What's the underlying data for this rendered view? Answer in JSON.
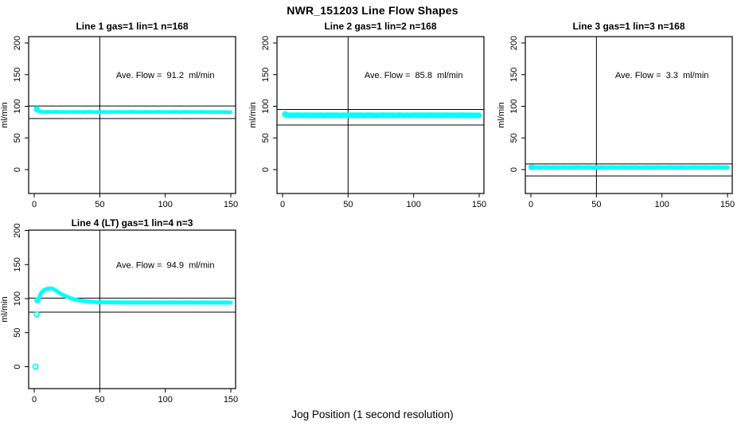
{
  "title": "NWR_151203  Line Flow Shapes",
  "xlabel": "Jog Position (1 second resolution)",
  "ylabel": "ml/min",
  "colors": {
    "points": "#00FFFF",
    "axis": "#000000",
    "background": "#FFFFFF"
  },
  "chart_data": [
    {
      "type": "scatter",
      "title": "Line 1 gas=1 lin=1 n=168",
      "line": 1,
      "gas": 1,
      "lin": 1,
      "n": 168,
      "annotation": "Ave. Flow =  91.2  ml/min",
      "ave_flow_ml_min": 91.2,
      "ylabel": "ml/min",
      "x_ticks": [
        0,
        50,
        100,
        150
      ],
      "y_ticks": [
        0,
        50,
        100,
        150,
        200
      ],
      "xlim": [
        -4,
        154
      ],
      "ylim": [
        -38,
        210
      ],
      "grid": false,
      "vline_x": 50,
      "hlines": [
        100.4,
        80.7
      ],
      "ring_markers": [
        [
          2,
          95.5
        ]
      ],
      "points": [
        [
          2,
          95.5
        ],
        [
          3,
          92.2
        ],
        [
          5,
          91.4
        ],
        [
          8,
          90.9
        ],
        [
          11,
          91.3
        ],
        [
          14,
          91.0
        ],
        [
          17,
          91.4
        ],
        [
          20,
          90.8
        ],
        [
          23,
          91.2
        ],
        [
          26,
          91.0
        ],
        [
          29,
          91.3
        ],
        [
          32,
          90.9
        ],
        [
          35,
          91.2
        ],
        [
          38,
          91.0
        ],
        [
          41,
          91.4
        ],
        [
          44,
          90.8
        ],
        [
          47,
          91.1
        ],
        [
          50,
          91.0
        ],
        [
          53,
          91.3
        ],
        [
          56,
          90.9
        ],
        [
          59,
          91.2
        ],
        [
          62,
          91.0
        ],
        [
          65,
          91.3
        ],
        [
          68,
          90.8
        ],
        [
          71,
          91.1
        ],
        [
          74,
          91.3
        ],
        [
          77,
          90.9
        ],
        [
          80,
          91.2
        ],
        [
          83,
          91.0
        ],
        [
          86,
          91.3
        ],
        [
          89,
          90.8
        ],
        [
          92,
          91.1
        ],
        [
          95,
          91.3
        ],
        [
          98,
          90.9
        ],
        [
          101,
          91.2
        ],
        [
          104,
          91.0
        ],
        [
          107,
          91.3
        ],
        [
          110,
          90.8
        ],
        [
          113,
          91.1
        ],
        [
          116,
          91.3
        ],
        [
          119,
          90.9
        ],
        [
          122,
          91.2
        ],
        [
          125,
          91.0
        ],
        [
          128,
          91.3
        ],
        [
          131,
          90.8
        ],
        [
          134,
          91.1
        ],
        [
          137,
          91.0
        ],
        [
          140,
          91.2
        ],
        [
          143,
          90.8
        ],
        [
          146,
          91.0
        ],
        [
          149,
          90.7
        ],
        [
          150,
          90.8
        ]
      ]
    },
    {
      "type": "scatter",
      "title": "Line 2 gas=1 lin=2 n=168",
      "line": 2,
      "gas": 1,
      "lin": 2,
      "n": 168,
      "annotation": "Ave. Flow =  85.8  ml/min",
      "ave_flow_ml_min": 85.8,
      "ylabel": "ml/min",
      "x_ticks": [
        0,
        50,
        100,
        150
      ],
      "y_ticks": [
        0,
        50,
        100,
        150,
        200
      ],
      "xlim": [
        -4,
        154
      ],
      "ylim": [
        -38,
        210
      ],
      "grid": false,
      "vline_x": 50,
      "hlines": [
        95.0,
        70.5
      ],
      "ring_markers": [
        [
          2,
          87.5
        ]
      ],
      "points": [
        [
          2,
          87.5
        ],
        [
          3,
          86.2
        ],
        [
          5,
          85.9
        ],
        [
          8,
          85.6
        ],
        [
          11,
          86.0
        ],
        [
          14,
          85.7
        ],
        [
          17,
          86.1
        ],
        [
          20,
          85.6
        ],
        [
          23,
          85.9
        ],
        [
          26,
          85.7
        ],
        [
          29,
          86.0
        ],
        [
          32,
          85.6
        ],
        [
          35,
          85.9
        ],
        [
          38,
          85.7
        ],
        [
          41,
          86.0
        ],
        [
          44,
          85.6
        ],
        [
          47,
          85.8
        ],
        [
          50,
          85.7
        ],
        [
          53,
          86.0
        ],
        [
          56,
          85.6
        ],
        [
          59,
          85.9
        ],
        [
          62,
          85.7
        ],
        [
          65,
          86.0
        ],
        [
          68,
          85.6
        ],
        [
          71,
          85.8
        ],
        [
          74,
          85.7
        ],
        [
          77,
          86.0
        ],
        [
          80,
          85.6
        ],
        [
          83,
          85.9
        ],
        [
          86,
          85.7
        ],
        [
          89,
          86.0
        ],
        [
          92,
          85.6
        ],
        [
          95,
          85.8
        ],
        [
          98,
          85.7
        ],
        [
          101,
          86.0
        ],
        [
          104,
          85.6
        ],
        [
          107,
          85.9
        ],
        [
          110,
          85.7
        ],
        [
          113,
          86.0
        ],
        [
          116,
          85.6
        ],
        [
          119,
          85.8
        ],
        [
          122,
          85.7
        ],
        [
          125,
          86.0
        ],
        [
          128,
          85.6
        ],
        [
          131,
          85.9
        ],
        [
          134,
          85.7
        ],
        [
          137,
          86.0
        ],
        [
          140,
          85.6
        ],
        [
          143,
          85.8
        ],
        [
          146,
          85.7
        ],
        [
          149,
          85.6
        ],
        [
          150,
          85.7
        ]
      ]
    },
    {
      "type": "scatter",
      "title": "Line 3 gas=1 lin=3 n=168",
      "line": 3,
      "gas": 1,
      "lin": 3,
      "n": 168,
      "annotation": "Ave. Flow =  3.3  ml/min",
      "ave_flow_ml_min": 3.3,
      "ylabel": "ml/min",
      "x_ticks": [
        0,
        50,
        100,
        150
      ],
      "y_ticks": [
        0,
        50,
        100,
        150,
        200
      ],
      "xlim": [
        -4,
        154
      ],
      "ylim": [
        -38,
        210
      ],
      "grid": false,
      "vline_x": 50,
      "hlines": [
        9.0,
        -10.0
      ],
      "ring_markers": [
        [
          0.5,
          3.8
        ]
      ],
      "points": [
        [
          0.5,
          3.8
        ],
        [
          2,
          3.4
        ],
        [
          5,
          3.3
        ],
        [
          8,
          3.2
        ],
        [
          11,
          3.4
        ],
        [
          14,
          3.2
        ],
        [
          17,
          3.4
        ],
        [
          20,
          3.2
        ],
        [
          23,
          3.3
        ],
        [
          26,
          3.4
        ],
        [
          29,
          3.2
        ],
        [
          32,
          3.3
        ],
        [
          35,
          3.4
        ],
        [
          38,
          3.2
        ],
        [
          41,
          3.3
        ],
        [
          44,
          3.4
        ],
        [
          47,
          3.2
        ],
        [
          50,
          3.3
        ],
        [
          53,
          3.4
        ],
        [
          56,
          3.2
        ],
        [
          59,
          3.3
        ],
        [
          62,
          3.4
        ],
        [
          65,
          3.2
        ],
        [
          68,
          3.3
        ],
        [
          71,
          3.4
        ],
        [
          74,
          3.2
        ],
        [
          77,
          3.3
        ],
        [
          80,
          3.4
        ],
        [
          83,
          3.2
        ],
        [
          86,
          3.3
        ],
        [
          89,
          3.4
        ],
        [
          92,
          3.2
        ],
        [
          95,
          3.3
        ],
        [
          98,
          3.4
        ],
        [
          101,
          3.2
        ],
        [
          104,
          3.3
        ],
        [
          107,
          3.4
        ],
        [
          110,
          3.2
        ],
        [
          113,
          3.3
        ],
        [
          116,
          3.4
        ],
        [
          119,
          3.2
        ],
        [
          122,
          3.3
        ],
        [
          125,
          3.4
        ],
        [
          128,
          3.2
        ],
        [
          131,
          3.3
        ],
        [
          134,
          3.4
        ],
        [
          137,
          3.2
        ],
        [
          140,
          3.3
        ],
        [
          143,
          3.4
        ],
        [
          146,
          3.2
        ],
        [
          149,
          3.3
        ],
        [
          150,
          3.3
        ]
      ]
    },
    {
      "type": "scatter",
      "title": "Line 4 (LT) gas=1 lin=4 n=3",
      "line": 4,
      "line_note": "LT",
      "gas": 1,
      "lin": 4,
      "n": 3,
      "annotation": "Ave. Flow =  94.9  ml/min",
      "ave_flow_ml_min": 94.9,
      "ylabel": "ml/min",
      "x_ticks": [
        0,
        50,
        100,
        150
      ],
      "y_ticks": [
        0,
        50,
        100,
        150,
        200
      ],
      "xlim": [
        -4,
        154
      ],
      "ylim": [
        -32,
        200
      ],
      "grid": false,
      "vline_x": 50,
      "hlines": [
        100.8,
        80.1
      ],
      "ring_markers": [
        [
          1,
          0
        ],
        [
          2,
          77
        ],
        [
          2.5,
          97.5
        ]
      ],
      "points": [
        [
          3,
          97
        ],
        [
          4,
          103
        ],
        [
          5,
          107
        ],
        [
          6,
          110
        ],
        [
          8,
          113
        ],
        [
          10,
          114.5
        ],
        [
          12,
          115
        ],
        [
          14,
          114.5
        ],
        [
          16,
          112.5
        ],
        [
          18,
          110
        ],
        [
          20,
          107.5
        ],
        [
          22,
          105.5
        ],
        [
          24,
          103.5
        ],
        [
          26,
          102
        ],
        [
          28,
          100.5
        ],
        [
          30,
          99.3
        ],
        [
          32,
          98.3
        ],
        [
          34,
          97.5
        ],
        [
          36,
          96.8
        ],
        [
          38,
          96.3
        ],
        [
          40,
          95.9
        ],
        [
          43,
          95.4
        ],
        [
          46,
          95.1
        ],
        [
          49,
          94.9
        ],
        [
          52,
          94.7
        ],
        [
          55,
          94.6
        ],
        [
          58,
          94.5
        ],
        [
          61,
          94.6
        ],
        [
          64,
          94.4
        ],
        [
          67,
          94.5
        ],
        [
          70,
          94.3
        ],
        [
          73,
          94.5
        ],
        [
          76,
          94.3
        ],
        [
          79,
          94.4
        ],
        [
          82,
          94.3
        ],
        [
          85,
          94.5
        ],
        [
          88,
          94.2
        ],
        [
          91,
          94.4
        ],
        [
          94,
          94.3
        ],
        [
          97,
          94.5
        ],
        [
          100,
          94.2
        ],
        [
          103,
          94.4
        ],
        [
          106,
          94.3
        ],
        [
          109,
          94.4
        ],
        [
          112,
          94.2
        ],
        [
          115,
          94.4
        ],
        [
          118,
          94.3
        ],
        [
          121,
          94.4
        ],
        [
          124,
          94.2
        ],
        [
          127,
          94.3
        ],
        [
          130,
          94.4
        ],
        [
          133,
          94.2
        ],
        [
          136,
          94.3
        ],
        [
          139,
          94.4
        ],
        [
          142,
          94.2
        ],
        [
          145,
          94.3
        ],
        [
          148,
          94.1
        ],
        [
          150,
          94.0
        ]
      ]
    }
  ]
}
